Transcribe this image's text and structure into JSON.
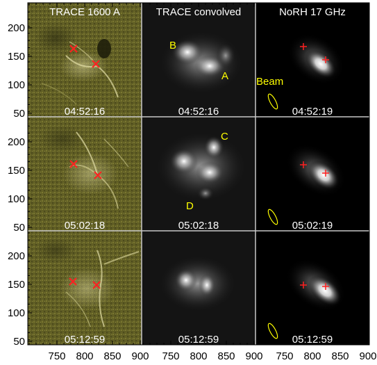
{
  "columns": [
    {
      "title": "TRACE 1600 A"
    },
    {
      "title": "TRACE convolved"
    },
    {
      "title": "NoRH 17 GHz"
    }
  ],
  "rows": [
    {
      "times": [
        "04:52:16",
        "04:52:16",
        "04:52:19"
      ]
    },
    {
      "times": [
        "05:02:18",
        "05:02:18",
        "05:02:19"
      ]
    },
    {
      "times": [
        "05:12:59",
        "05:12:59",
        "05:12:59"
      ]
    }
  ],
  "labels": {
    "A": "A",
    "B": "B",
    "C": "C",
    "D": "D",
    "beam": "Beam"
  },
  "x_ticks": [
    "750",
    "800",
    "850",
    "900"
  ],
  "y_ticks": [
    "200",
    "150",
    "100",
    "50"
  ],
  "colors": {
    "trace_tint": "#7d7a2a",
    "annotation_yellow": "#ffff00",
    "marker_red": "#ff2020",
    "panel_divider": "#c8c8c8"
  },
  "markers": {
    "trace_1600": "x-cross",
    "norh_17ghz": "plus-cross"
  }
}
